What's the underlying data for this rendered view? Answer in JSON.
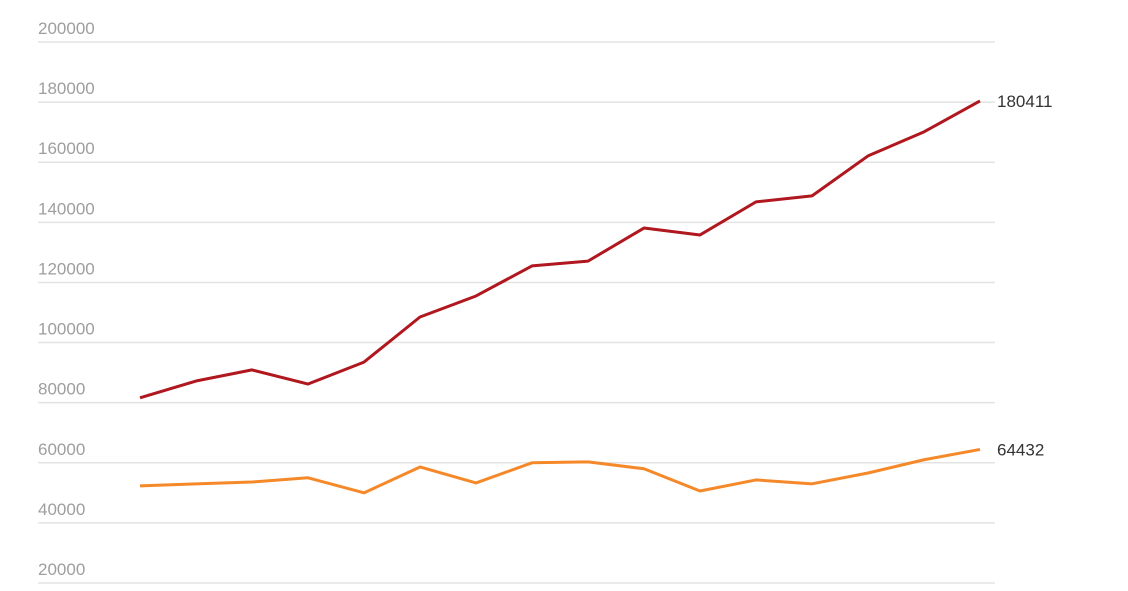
{
  "chart_data": {
    "type": "line",
    "categories": [
      null,
      null,
      null,
      null,
      null,
      null,
      null,
      null,
      null,
      null,
      null,
      null,
      null,
      null,
      null,
      null
    ],
    "series": [
      {
        "color": "#b0171f",
        "values": [
          81600,
          87200,
          90900,
          86200,
          93500,
          108500,
          115500,
          125500,
          127100,
          138100,
          135800,
          146800,
          148800,
          162100,
          170100,
          180411
        ]
      },
      {
        "color": "#f5892a",
        "values": [
          52300,
          53000,
          53600,
          55000,
          50000,
          58600,
          53300,
          60000,
          60300,
          58000,
          50600,
          54300,
          53000,
          56600,
          61000,
          64432
        ]
      }
    ],
    "ylim": [
      20000,
      200000
    ],
    "yticks": [
      20000,
      40000,
      60000,
      80000,
      100000,
      120000,
      140000,
      160000,
      180000,
      200000
    ],
    "grid": true,
    "end_labels": true
  }
}
